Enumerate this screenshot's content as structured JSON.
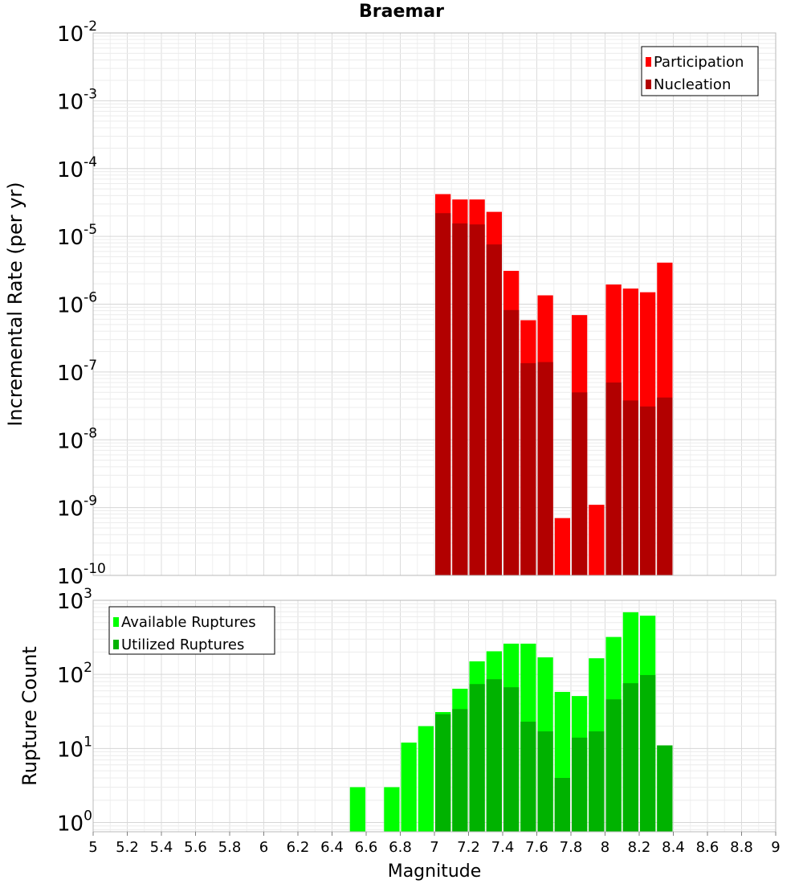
{
  "title": "Braemar",
  "chart_data": [
    {
      "type": "bar",
      "title": "Braemar",
      "xlabel": "Magnitude",
      "ylabel": "Incremental Rate (per yr)",
      "yscale": "log",
      "ylim": [
        1e-10,
        0.01
      ],
      "xlim": [
        5,
        9
      ],
      "grid": true,
      "legend": "top-right",
      "y_tick_labels": [
        {
          "base": "10",
          "exp": "-10"
        },
        {
          "base": "10",
          "exp": "-9"
        },
        {
          "base": "10",
          "exp": "-8"
        },
        {
          "base": "10",
          "exp": "-7"
        },
        {
          "base": "10",
          "exp": "-6"
        },
        {
          "base": "10",
          "exp": "-5"
        },
        {
          "base": "10",
          "exp": "-4"
        },
        {
          "base": "10",
          "exp": "-3"
        },
        {
          "base": "10",
          "exp": "-2"
        }
      ],
      "x": [
        7.05,
        7.15,
        7.25,
        7.35,
        7.45,
        7.55,
        7.65,
        7.75,
        7.85,
        7.95,
        8.05,
        8.15,
        8.25,
        8.35
      ],
      "series": [
        {
          "name": "Participation",
          "color": "#ff0000",
          "values": [
            4.2e-05,
            3.5e-05,
            3.5e-05,
            2.3e-05,
            3.1e-06,
            5.8e-07,
            1.35e-06,
            7e-10,
            6.9e-07,
            1.1e-09,
            1.95e-06,
            1.7e-06,
            1.5e-06,
            4.1e-06
          ]
        },
        {
          "name": "Nucleation",
          "color": "#b20000",
          "values": [
            2.2e-05,
            1.55e-05,
            1.5e-05,
            7.6e-06,
            8.2e-07,
            1.35e-07,
            1.4e-07,
            null,
            5e-08,
            null,
            7e-08,
            3.8e-08,
            3.1e-08,
            4.2e-08
          ]
        }
      ]
    },
    {
      "type": "bar",
      "xlabel": "Magnitude",
      "ylabel": "Rupture Count",
      "yscale": "log",
      "ylim": [
        0.75,
        1000
      ],
      "xlim": [
        5,
        9
      ],
      "grid": true,
      "legend": "top-left",
      "y_tick_labels": [
        {
          "base": "10",
          "exp": "0"
        },
        {
          "base": "10",
          "exp": "1"
        },
        {
          "base": "10",
          "exp": "2"
        },
        {
          "base": "10",
          "exp": "3"
        }
      ],
      "x_tick_labels": [
        "5",
        "5.2",
        "5.4",
        "5.6",
        "5.8",
        "6",
        "6.2",
        "6.4",
        "6.6",
        "6.8",
        "7",
        "7.2",
        "7.4",
        "7.6",
        "7.8",
        "8",
        "8.2",
        "8.4",
        "8.6",
        "8.8",
        "9"
      ],
      "x": [
        6.55,
        6.75,
        6.85,
        6.95,
        7.05,
        7.15,
        7.25,
        7.35,
        7.45,
        7.55,
        7.65,
        7.75,
        7.85,
        7.95,
        8.05,
        8.15,
        8.25,
        8.35
      ],
      "series": [
        {
          "name": "Available Ruptures",
          "color": "#00ff00",
          "values": [
            3,
            3,
            12,
            20,
            31,
            64,
            150,
            205,
            260,
            260,
            170,
            58,
            51,
            165,
            320,
            690,
            620,
            11
          ]
        },
        {
          "name": "Utilized Ruptures",
          "color": "#00b200",
          "values": [
            null,
            null,
            null,
            null,
            29,
            34,
            74,
            86,
            67,
            23,
            17,
            4,
            14,
            17,
            46,
            76,
            98,
            11
          ]
        }
      ]
    }
  ]
}
